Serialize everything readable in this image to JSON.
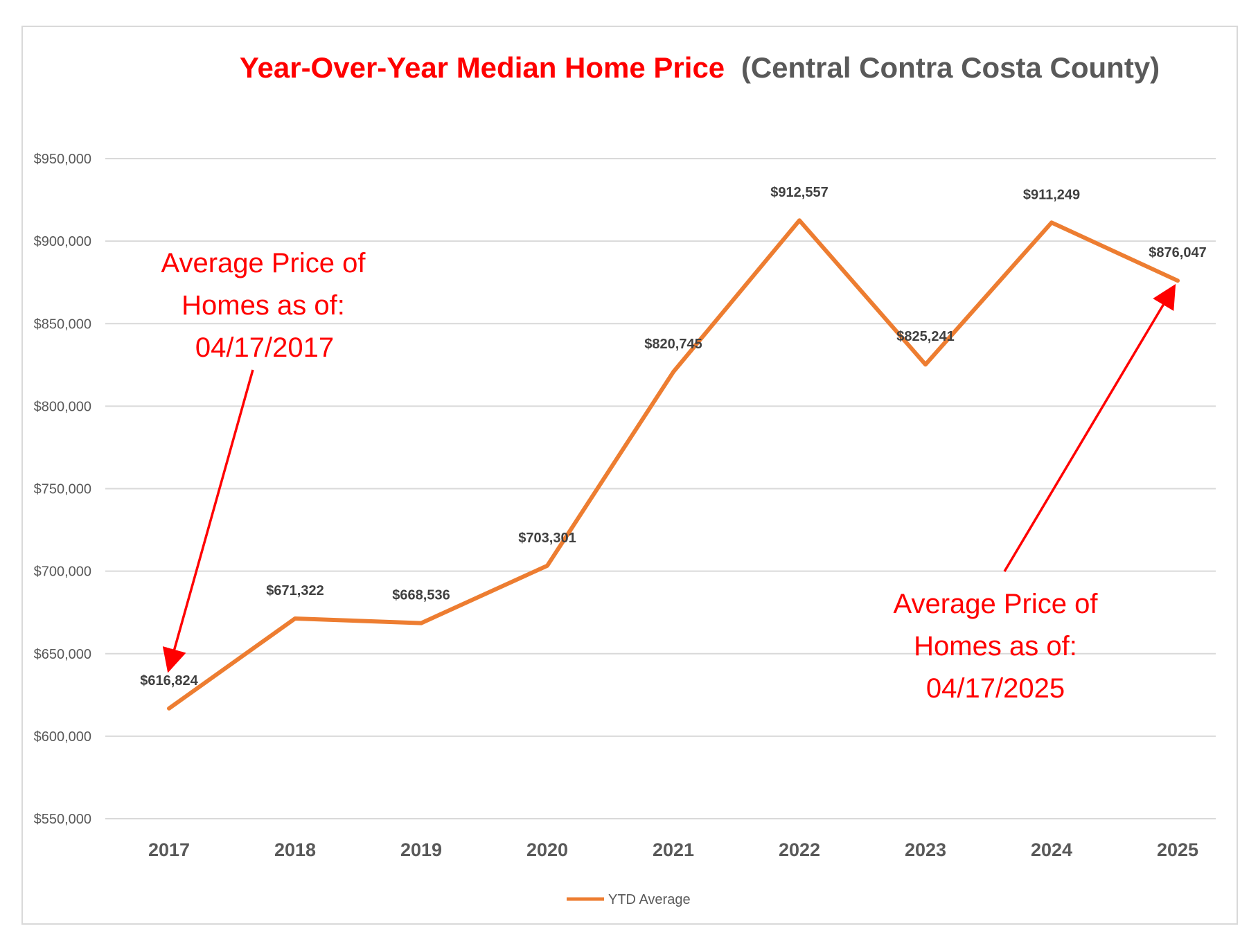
{
  "chart_data": {
    "type": "line",
    "title": "Year-Over-Year Median Home Price",
    "subtitle": "(Central Contra Costa County)",
    "categories": [
      "2017",
      "2018",
      "2019",
      "2020",
      "2021",
      "2022",
      "2023",
      "2024",
      "2025"
    ],
    "series": [
      {
        "name": "YTD Average",
        "values": [
          616824,
          671322,
          668536,
          703301,
          820745,
          912557,
          825241,
          911249,
          876047
        ],
        "labels": [
          "$616,824",
          "$671,322",
          "$668,536",
          "$703,301",
          "$820,745",
          "$912,557",
          "$825,241",
          "$911,249",
          "$876,047"
        ]
      }
    ],
    "ylim": [
      550000,
      950000
    ],
    "y_ticks": [
      550000,
      600000,
      650000,
      700000,
      750000,
      800000,
      850000,
      900000,
      950000
    ],
    "y_tick_labels": [
      "$550,000",
      "$600,000",
      "$650,000",
      "$700,000",
      "$750,000",
      "$800,000",
      "$850,000",
      "$900,000",
      "$950,000"
    ],
    "grid": true,
    "legend": "bottom",
    "annotations": [
      {
        "lines": [
          "Average Price of",
          "Homes as of:",
          "04/17/2017"
        ],
        "points_to": "2017"
      },
      {
        "lines": [
          "Average Price of",
          "Homes as of:",
          "04/17/2025"
        ],
        "points_to": "2025"
      }
    ],
    "colors": {
      "line": "#ED7D31",
      "title": "#FF0000",
      "subtitle": "#595959",
      "annotation": "#FF0000",
      "grid": "#d9d9d9",
      "axis_text": "#595959",
      "label_text": "#404040"
    }
  }
}
